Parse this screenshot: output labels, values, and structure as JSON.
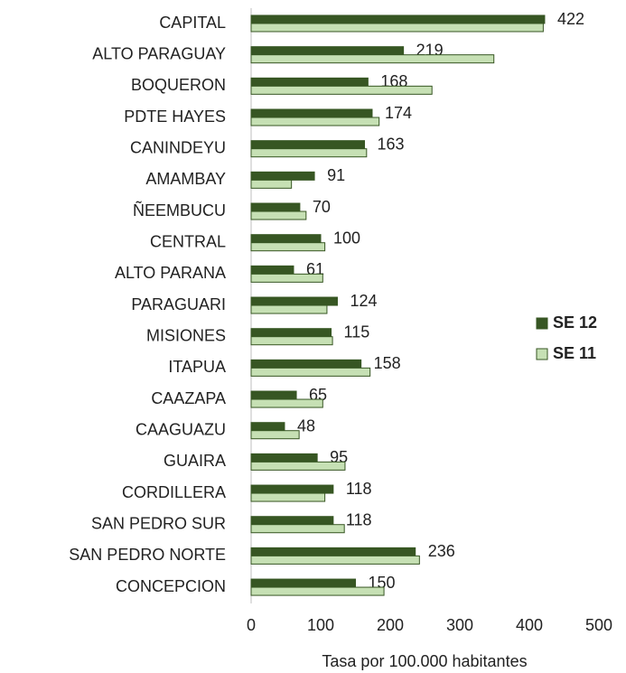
{
  "chart_data": {
    "type": "hbar",
    "categories": [
      "CAPITAL",
      "ALTO PARAGUAY",
      "BOQUERON",
      "PDTE HAYES",
      "CANINDEYU",
      "AMAMBAY",
      "ÑEEMBUCU",
      "CENTRAL",
      "ALTO PARANA",
      "PARAGUARI",
      "MISIONES",
      "ITAPUA",
      "CAAZAPA",
      "CAAGUAZU",
      "GUAIRA",
      "CORDILLERA",
      "SAN PEDRO SUR",
      "SAN PEDRO NORTE",
      "CONCEPCION"
    ],
    "series": [
      {
        "name": "SE 12",
        "color": "#375623",
        "values": [
          422,
          219,
          168,
          174,
          163,
          91,
          70,
          100,
          61,
          124,
          115,
          158,
          65,
          48,
          95,
          118,
          118,
          236,
          150
        ]
      },
      {
        "name": "SE 11",
        "color": "#c6e0b4",
        "values": [
          420,
          349,
          260,
          184,
          166,
          58,
          79,
          106,
          103,
          109,
          117,
          171,
          103,
          69,
          135,
          106,
          134,
          242,
          191
        ]
      }
    ],
    "xlabel": "Tasa por 100.000 habitantes",
    "xlim": [
      0,
      500
    ],
    "xticks": [
      0,
      100,
      200,
      300,
      400,
      500
    ],
    "grid": false,
    "legend": "right"
  }
}
